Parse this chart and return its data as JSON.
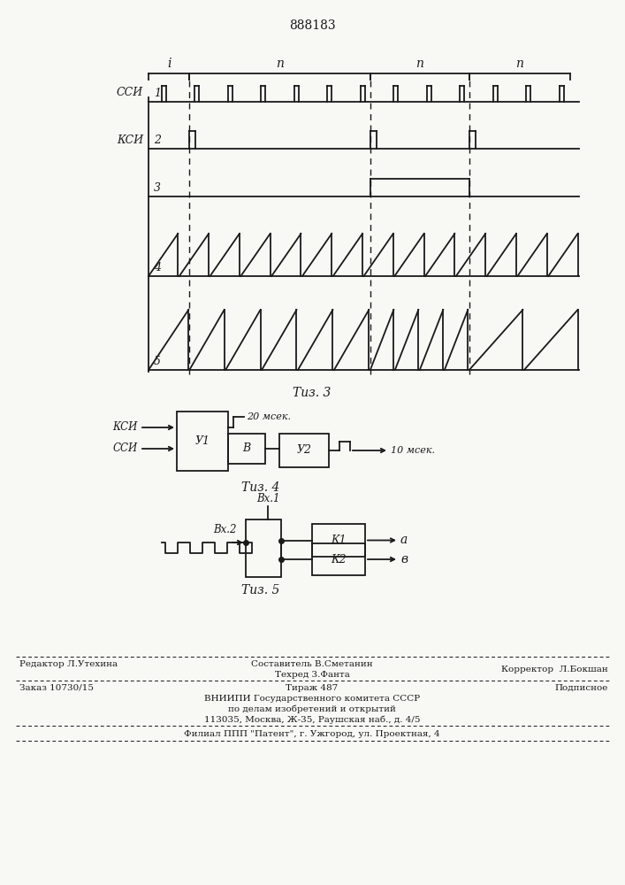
{
  "title": "888183",
  "background_color": "#f8f8f5",
  "line_color": "#1a1a1a",
  "fig3_caption": "Τиз. 3",
  "fig4_caption": "Τиз. 4",
  "fig5_caption": "Τиз. 5",
  "footer_line1_left": "Редактор Л.Утехина",
  "footer_line1_center": "Составитель В.Сметанин",
  "footer_line2_center": "Техред 3.Фанта",
  "footer_line2_right": "Корректор  Л.Бокшан",
  "footer_line3_left": "Заказ 10730/15",
  "footer_line3_center": "Тираж 487",
  "footer_line3_right": "Подписное",
  "footer_line4": "ВНИИПИ Государственного комитета СССР",
  "footer_line5": "по делам изобретений и открытий",
  "footer_line6": "113035, Москва, Ж-35, Раушская наб., д. 4/5",
  "footer_line7": "Филиал ППП \"Патент\", г. Ужгород, ул. Проектная, 4"
}
